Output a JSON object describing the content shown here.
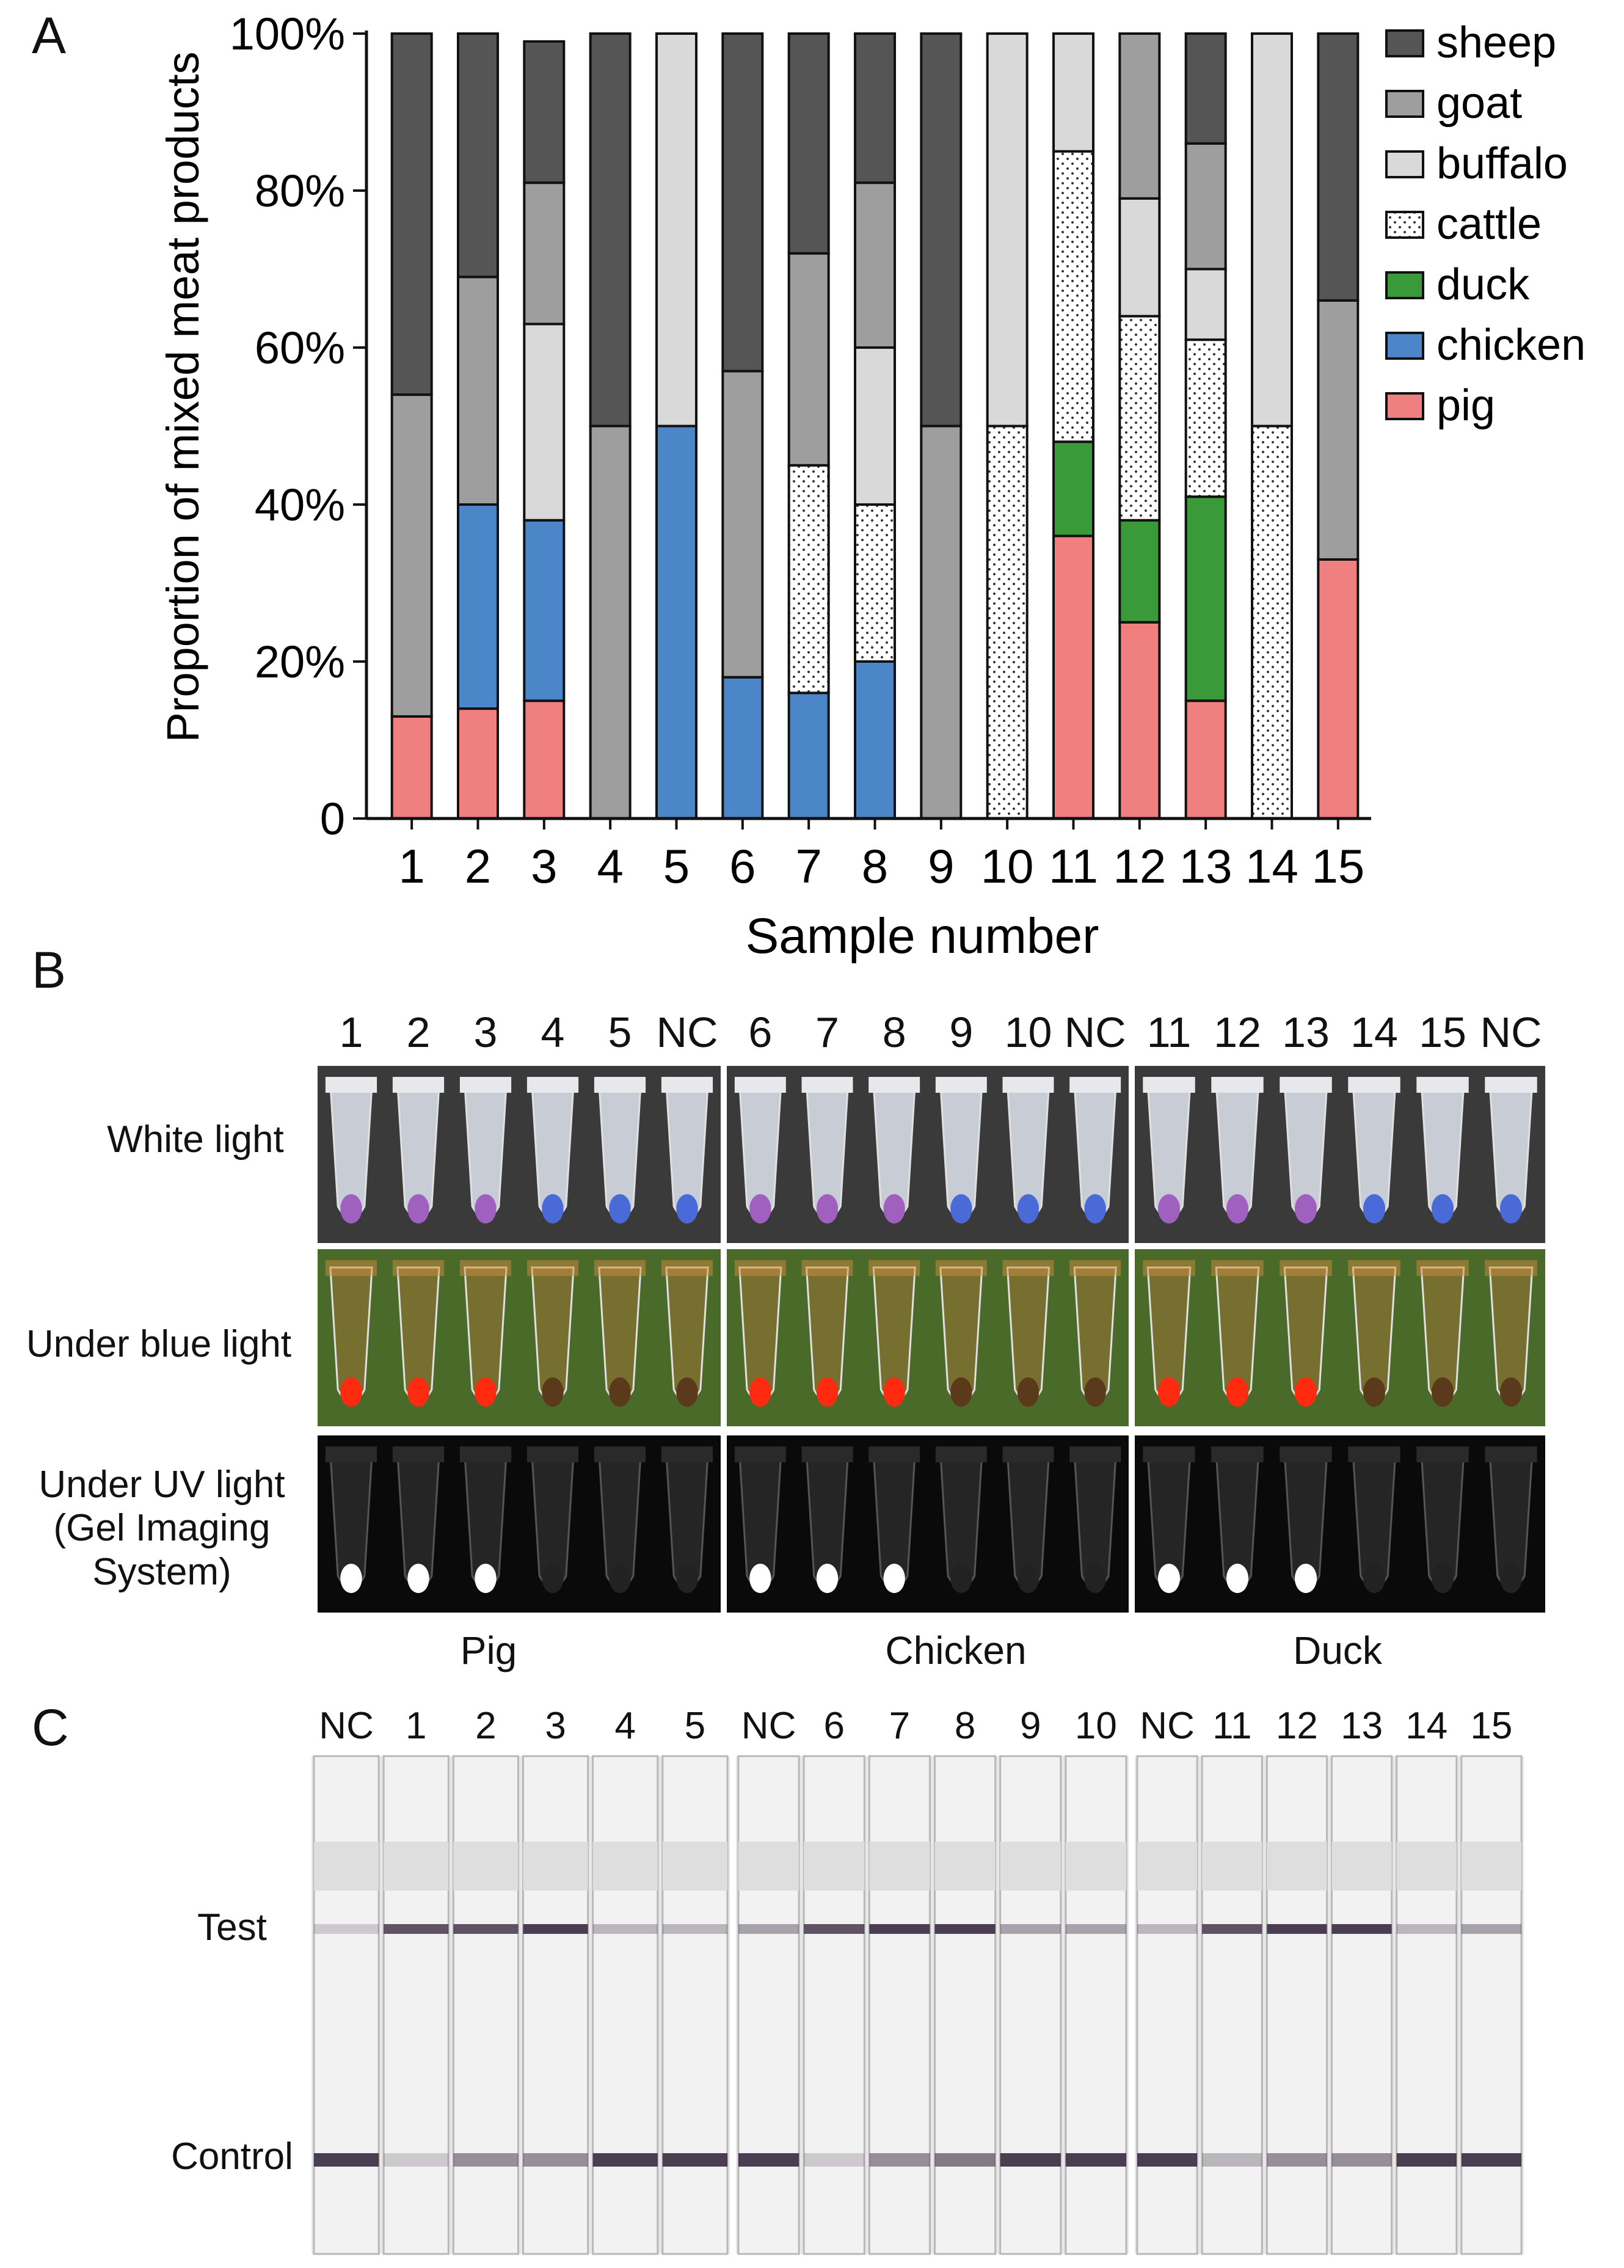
{
  "panels": {
    "a": "A",
    "b": "B",
    "c": "C"
  },
  "chart_data": {
    "type": "bar",
    "stacked": true,
    "ylabel": "Proportion of mixed meat products",
    "xlabel": "Sample number",
    "ylim": [
      0,
      100
    ],
    "y_ticks": [
      0,
      20,
      40,
      60,
      80,
      100
    ],
    "y_tick_labels": [
      "0",
      "20%",
      "40%",
      "60%",
      "80%",
      "100%"
    ],
    "categories": [
      "1",
      "2",
      "3",
      "4",
      "5",
      "6",
      "7",
      "8",
      "9",
      "10",
      "11",
      "12",
      "13",
      "14",
      "15"
    ],
    "legend_position": "top-right",
    "series": [
      {
        "name": "pig",
        "color": "#f08080",
        "pattern": "solid",
        "values": [
          13,
          14,
          15,
          0,
          0,
          0,
          0,
          0,
          0,
          0,
          36,
          25,
          15,
          0,
          33
        ]
      },
      {
        "name": "chicken",
        "color": "#4a86c8",
        "pattern": "solid",
        "values": [
          0,
          26,
          23,
          0,
          50,
          18,
          16,
          20,
          0,
          0,
          0,
          0,
          0,
          0,
          0
        ]
      },
      {
        "name": "duck",
        "color": "#3a9a3a",
        "pattern": "solid",
        "values": [
          0,
          0,
          0,
          0,
          0,
          0,
          0,
          0,
          0,
          0,
          12,
          13,
          26,
          0,
          0
        ]
      },
      {
        "name": "cattle",
        "color": "#ffffff",
        "pattern": "dots",
        "values": [
          0,
          0,
          0,
          0,
          0,
          0,
          29,
          20,
          0,
          50,
          37,
          26,
          20,
          50,
          0
        ]
      },
      {
        "name": "buffalo",
        "color": "#d9d9d9",
        "pattern": "solid",
        "values": [
          0,
          0,
          25,
          0,
          50,
          0,
          0,
          20,
          0,
          50,
          15,
          15,
          9,
          50,
          0
        ]
      },
      {
        "name": "goat",
        "color": "#9e9e9e",
        "pattern": "solid",
        "values": [
          41,
          29,
          18,
          50,
          0,
          39,
          27,
          21,
          50,
          0,
          0,
          21,
          16,
          0,
          33
        ]
      },
      {
        "name": "sheep",
        "color": "#555555",
        "pattern": "solid",
        "values": [
          46,
          31,
          18,
          50,
          0,
          43,
          28,
          19,
          50,
          0,
          0,
          0,
          14,
          0,
          34
        ]
      }
    ]
  },
  "panel_b": {
    "tube_labels": [
      "1",
      "2",
      "3",
      "4",
      "5",
      "NC",
      "6",
      "7",
      "8",
      "9",
      "10",
      "NC",
      "11",
      "12",
      "13",
      "14",
      "15",
      "NC"
    ],
    "rows": [
      "White light",
      "Under blue light",
      "Under UV light\n(Gel Imaging\nSystem)"
    ],
    "row_labels": {
      "white": "White light",
      "blue": "Under blue light",
      "uv1": "Under UV light",
      "uv2": "(Gel Imaging",
      "uv3": "System)"
    },
    "groups": [
      "Pig",
      "Chicken",
      "Duck"
    ],
    "positive_tubes": [
      1,
      2,
      3,
      6,
      7,
      8,
      11,
      12,
      13
    ],
    "colors": {
      "white_bg": "#3a3a3a",
      "tube_pos": "#a060c0",
      "tube_neg": "#4a6ad8",
      "blue_bg": "#4a6a2a",
      "blue_pos": "#ff2a10",
      "uv_bg": "#0a0a0a",
      "uv_pos": "#ffffff"
    }
  },
  "panel_c": {
    "strip_labels": [
      "NC",
      "1",
      "2",
      "3",
      "4",
      "5",
      "NC",
      "6",
      "7",
      "8",
      "9",
      "10",
      "NC",
      "11",
      "12",
      "13",
      "14",
      "15"
    ],
    "row_labels": {
      "test": "Test",
      "control": "Control"
    },
    "test_line_strength": [
      0.2,
      0.8,
      0.8,
      0.9,
      0.3,
      0.3,
      0.4,
      0.8,
      0.9,
      0.9,
      0.4,
      0.4,
      0.3,
      0.8,
      0.9,
      0.9,
      0.3,
      0.4
    ],
    "control_line_strength": [
      0.9,
      0.2,
      0.5,
      0.5,
      0.9,
      0.9,
      0.9,
      0.2,
      0.5,
      0.6,
      0.9,
      0.9,
      0.9,
      0.3,
      0.5,
      0.5,
      0.9,
      0.9
    ]
  }
}
